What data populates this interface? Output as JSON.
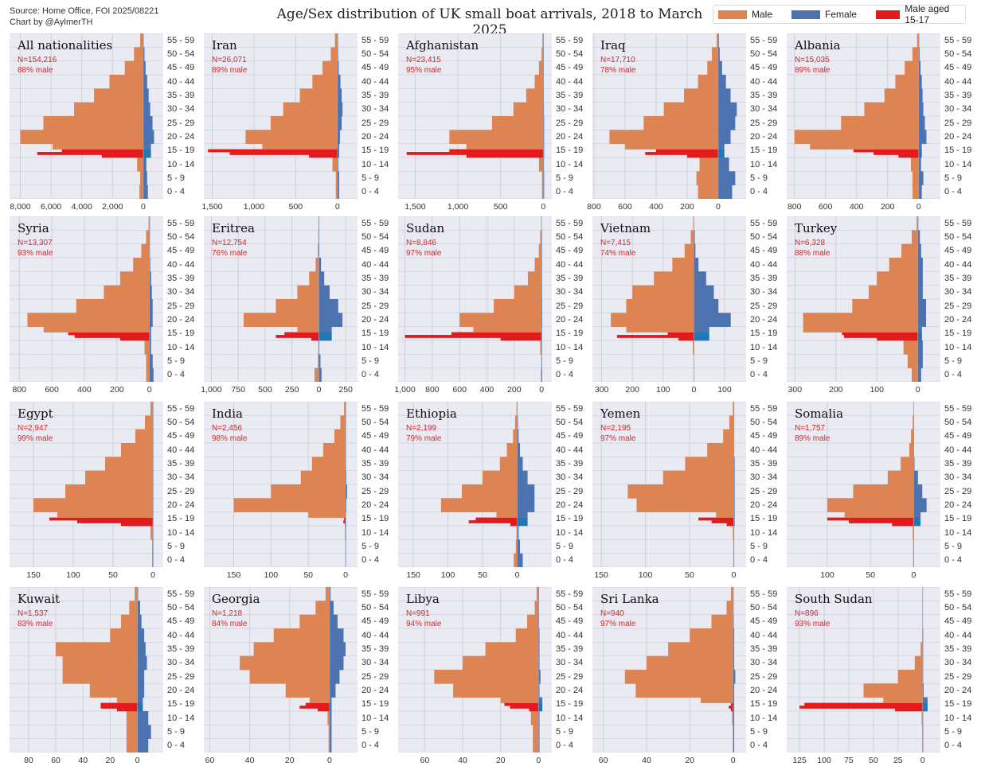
{
  "header": {
    "source_line": "Source: Home Office, FOI 2025/08221",
    "credit_line": "Chart by @AylmerTH",
    "title": "Age/Sex distribution of UK small boat arrivals, 2018 to March 2025"
  },
  "legend": [
    {
      "label": "Male",
      "color": "#dd8452"
    },
    {
      "label": "Female",
      "color": "#4c72b0"
    },
    {
      "label": "Male aged 15-17",
      "color": "#e31a1c"
    }
  ],
  "colors": {
    "male": "#dd8452",
    "female": "#4c72b0",
    "female_15_17": "#1f78b4",
    "male_15_17": "#e31a1c",
    "panel_bg": "#eaeaf2"
  },
  "chart_data": {
    "type": "bar",
    "orientation": "horizontal population pyramid",
    "grid": true,
    "legend_placement": "top-right",
    "age_groups": [
      "0 - 4",
      "5 - 9",
      "10 - 14",
      "15 - 19",
      "20 - 24",
      "25 - 29",
      "30 - 34",
      "35 - 39",
      "40 - 44",
      "45 - 49",
      "50 - 54",
      "55 - 59"
    ],
    "value_note_units": "arrivals per single year of age",
    "panels": [
      {
        "name": "All nationalities",
        "n": "N=154,216",
        "pct": "88% male",
        "xlim": [
          -8700,
          1300
        ],
        "male_ticks": [
          "8,000",
          "6,000",
          "4,000",
          "2,000",
          "0"
        ],
        "male_tick_values": [
          8000,
          6000,
          4000,
          2000,
          0
        ],
        "female_tick_values": [],
        "male": [
          250,
          200,
          400,
          5900,
          8000,
          6500,
          4500,
          3200,
          2200,
          1200,
          600,
          200
        ],
        "male_15_17": [
          2700,
          6900,
          5300
        ],
        "female": [
          300,
          250,
          200,
          500,
          700,
          600,
          450,
          350,
          250,
          150,
          80,
          30
        ]
      },
      {
        "name": "Iran",
        "n": "N=26,071",
        "pct": "89% male",
        "xlim": [
          -1600,
          240
        ],
        "male_ticks": [
          "1,500",
          "1,000",
          "500",
          "0"
        ],
        "male_tick_values": [
          1500,
          1000,
          500,
          0
        ],
        "female_tick_values": [],
        "male": [
          20,
          20,
          60,
          900,
          1100,
          800,
          650,
          450,
          300,
          180,
          80,
          30
        ],
        "male_15_17": [
          340,
          1290,
          1550
        ],
        "female": [
          20,
          20,
          10,
          20,
          30,
          50,
          60,
          50,
          35,
          15,
          8,
          3
        ]
      },
      {
        "name": "Afghanistan",
        "n": "N=23,415",
        "pct": "95% male",
        "xlim": [
          -1700,
          100
        ],
        "male_ticks": [
          "1,500",
          "1,000",
          "500",
          "0"
        ],
        "male_tick_values": [
          1500,
          1000,
          500,
          0
        ],
        "female_tick_values": [],
        "male": [
          15,
          15,
          50,
          900,
          1100,
          600,
          350,
          200,
          100,
          50,
          20,
          10
        ],
        "male_15_17": [
          900,
          1600,
          1100
        ],
        "female": [
          10,
          10,
          8,
          10,
          10,
          10,
          8,
          6,
          4,
          3,
          2,
          1
        ]
      },
      {
        "name": "Iraq",
        "n": "N=17,710",
        "pct": "78% male",
        "xlim": [
          -810,
          180
        ],
        "male_ticks": [
          "800",
          "600",
          "400",
          "200",
          "0"
        ],
        "male_tick_values": [
          800,
          600,
          400,
          200,
          0
        ],
        "female_tick_values": [],
        "male": [
          130,
          140,
          120,
          600,
          700,
          480,
          350,
          220,
          130,
          70,
          40,
          10
        ],
        "male_15_17": [
          200,
          470,
          400
        ],
        "female": [
          90,
          110,
          70,
          40,
          80,
          110,
          120,
          80,
          50,
          25,
          10,
          5
        ]
      },
      {
        "name": "Albania",
        "n": "N=15,035",
        "pct": "89% male",
        "xlim": [
          -850,
          140
        ],
        "male_ticks": [
          "800",
          "600",
          "400",
          "200",
          "0"
        ],
        "male_tick_values": [
          800,
          600,
          400,
          200,
          0
        ],
        "female_tick_values": [],
        "male": [
          40,
          40,
          50,
          700,
          800,
          500,
          350,
          220,
          150,
          90,
          40,
          10
        ],
        "male_15_17": [
          130,
          290,
          420
        ],
        "female": [
          20,
          30,
          15,
          20,
          50,
          40,
          30,
          25,
          20,
          12,
          6,
          2
        ]
      },
      {
        "name": "Syria",
        "n": "N=13,307",
        "pct": "93% male",
        "xlim": [
          -860,
          85
        ],
        "male_ticks": [
          "800",
          "600",
          "400",
          "200",
          "0"
        ],
        "male_tick_values": [
          800,
          600,
          400,
          200,
          0
        ],
        "female_tick_values": [],
        "male": [
          20,
          20,
          30,
          650,
          750,
          450,
          280,
          180,
          100,
          50,
          20,
          5
        ],
        "male_15_17": [
          180,
          460,
          500
        ],
        "female": [
          25,
          20,
          10,
          10,
          20,
          20,
          15,
          10,
          5,
          3,
          2,
          1
        ]
      },
      {
        "name": "Eritrea",
        "n": "N=12,754",
        "pct": "76% male",
        "xlim": [
          -1070,
          360
        ],
        "male_ticks": [
          "1,000",
          "750",
          "500",
          "250",
          "0"
        ],
        "male_tick_values": [
          1000,
          750,
          500,
          250,
          0
        ],
        "female_ticks": [
          "250"
        ],
        "female_tick_values": [
          250
        ],
        "male": [
          40,
          10,
          5,
          200,
          700,
          400,
          200,
          90,
          30,
          10,
          5,
          2
        ],
        "male_15_17": [
          70,
          400,
          320
        ],
        "female": [
          25,
          15,
          5,
          120,
          220,
          180,
          100,
          50,
          20,
          5,
          3,
          1
        ]
      },
      {
        "name": "Sudan",
        "n": "N=8,846",
        "pct": "97% male",
        "xlim": [
          -1050,
          75
        ],
        "male_ticks": [
          "1,000",
          "800",
          "600",
          "400",
          "200",
          "0"
        ],
        "male_tick_values": [
          1000,
          800,
          600,
          400,
          200,
          0
        ],
        "female_tick_values": [],
        "male": [
          5,
          3,
          10,
          500,
          600,
          350,
          200,
          100,
          50,
          20,
          10,
          3
        ],
        "male_15_17": [
          300,
          1000,
          660
        ],
        "female": [
          5,
          3,
          2,
          4,
          5,
          5,
          4,
          3,
          2,
          1,
          1,
          0
        ]
      },
      {
        "name": "Vietnam",
        "n": "N=7,415",
        "pct": "74% male",
        "xlim": [
          -330,
          170
        ],
        "male_ticks": [
          "300",
          "200",
          "100",
          "0"
        ],
        "male_tick_values": [
          300,
          200,
          100,
          0
        ],
        "female_ticks": [
          "100"
        ],
        "female_tick_values": [
          100
        ],
        "male": [
          0,
          0,
          3,
          220,
          270,
          220,
          200,
          130,
          70,
          30,
          10,
          2
        ],
        "male_15_17": [
          50,
          250,
          85
        ],
        "female": [
          0,
          0,
          1,
          50,
          120,
          80,
          65,
          40,
          15,
          5,
          3,
          0
        ]
      },
      {
        "name": "Turkey",
        "n": "N=6,328",
        "pct": "88% male",
        "xlim": [
          -320,
          55
        ],
        "male_ticks": [
          "300",
          "200",
          "100",
          "0"
        ],
        "male_tick_values": [
          300,
          200,
          100,
          0
        ],
        "female_tick_values": [],
        "male": [
          15,
          25,
          35,
          280,
          280,
          160,
          120,
          100,
          70,
          40,
          15,
          3
        ],
        "male_15_17": [
          100,
          180,
          185
        ],
        "female": [
          8,
          12,
          12,
          10,
          20,
          20,
          12,
          12,
          12,
          8,
          5,
          1
        ]
      },
      {
        "name": "Egypt",
        "n": "N=2,947",
        "pct": "99% male",
        "xlim": [
          -180,
          13
        ],
        "male_ticks": [
          "150",
          "100",
          "50",
          "0"
        ],
        "male_tick_values": [
          150,
          100,
          50,
          0
        ],
        "female_tick_values": [],
        "male": [
          1,
          1,
          3,
          120,
          150,
          110,
          85,
          60,
          40,
          22,
          10,
          3
        ],
        "male_15_17": [
          40,
          95,
          130
        ],
        "female": [
          0.5,
          0.5,
          0.5,
          0.5,
          0.5,
          0.5,
          0.5,
          0.5,
          0.5,
          0.5,
          0.3,
          0.2
        ]
      },
      {
        "name": "India",
        "n": "N=2,456",
        "pct": "98% male",
        "xlim": [
          -190,
          16
        ],
        "male_ticks": [
          "150",
          "100",
          "50",
          "0"
        ],
        "male_tick_values": [
          150,
          100,
          50,
          0
        ],
        "female_tick_values": [],
        "male": [
          0,
          0,
          1,
          50,
          150,
          100,
          60,
          45,
          30,
          15,
          7,
          2
        ],
        "male_15_17": [
          1,
          3,
          2
        ],
        "female": [
          0.5,
          0.5,
          0.5,
          0.5,
          1,
          2,
          1,
          0.5,
          0.5,
          0.5,
          0.3,
          0.2
        ]
      },
      {
        "name": "Ethiopia",
        "n": "N=2,199",
        "pct": "79% male",
        "xlim": [
          -172,
          50
        ],
        "male_ticks": [
          "150",
          "100",
          "50",
          "0"
        ],
        "male_tick_values": [
          150,
          100,
          50,
          0
        ],
        "female_tick_values": [],
        "male": [
          5,
          2,
          1,
          30,
          110,
          80,
          50,
          25,
          15,
          6,
          3,
          1
        ],
        "male_15_17": [
          10,
          70,
          60
        ],
        "female": [
          8,
          4,
          2,
          15,
          25,
          25,
          15,
          8,
          4,
          2,
          1,
          0
        ]
      },
      {
        "name": "Yemen",
        "n": "N=2,195",
        "pct": "97% male",
        "xlim": [
          -160,
          14
        ],
        "male_ticks": [
          "150",
          "100",
          "50",
          "0"
        ],
        "male_tick_values": [
          150,
          100,
          50,
          0
        ],
        "female_tick_values": [],
        "male": [
          0.5,
          0.5,
          1,
          20,
          110,
          120,
          80,
          55,
          30,
          12,
          5,
          1
        ],
        "male_15_17": [
          8,
          25,
          40
        ],
        "female": [
          0.5,
          0.5,
          0.5,
          1,
          1,
          1,
          1,
          1,
          0.5,
          0.5,
          0.3,
          0.2
        ]
      },
      {
        "name": "Somalia",
        "n": "N=1,757",
        "pct": "89% male",
        "xlim": [
          -147,
          31
        ],
        "male_ticks": [
          "100",
          "50",
          "0"
        ],
        "male_tick_values": [
          100,
          50,
          0
        ],
        "female_tick_values": [],
        "male": [
          0.5,
          0.5,
          1,
          80,
          100,
          70,
          30,
          15,
          5,
          3,
          1,
          0
        ],
        "male_15_17": [
          25,
          75,
          100
        ],
        "female": [
          0.5,
          0.5,
          0.5,
          8,
          15,
          10,
          5,
          1,
          0.5,
          0.5,
          0.3,
          0
        ]
      },
      {
        "name": "Kuwait",
        "n": "N=1,537",
        "pct": "83% male",
        "xlim": [
          -94,
          19
        ],
        "male_ticks": [
          "80",
          "60",
          "40",
          "20",
          "0"
        ],
        "male_tick_values": [
          80,
          60,
          40,
          20,
          0
        ],
        "female_tick_values": [],
        "male": [
          8,
          8,
          8,
          15,
          35,
          55,
          55,
          60,
          20,
          12,
          6,
          2
        ],
        "male_15_17": [
          15,
          27,
          27
        ],
        "female": [
          8,
          10,
          8,
          4,
          5,
          5,
          7,
          6,
          5,
          3,
          2,
          0.5
        ]
      },
      {
        "name": "Georgia",
        "n": "N=1,218",
        "pct": "84% male",
        "xlim": [
          -63,
          14
        ],
        "male_ticks": [
          "60",
          "40",
          "20",
          "0"
        ],
        "male_tick_values": [
          60,
          40,
          20,
          0
        ],
        "female_tick_values": [],
        "male": [
          0.5,
          0.5,
          1,
          10,
          22,
          40,
          45,
          38,
          28,
          15,
          7,
          2
        ],
        "male_15_17": [
          6,
          15,
          12
        ],
        "female": [
          1,
          1,
          1,
          1,
          3,
          5,
          7,
          8,
          7,
          4,
          2,
          0.5
        ]
      },
      {
        "name": "Libya",
        "n": "N=991",
        "pct": "94% male",
        "xlim": [
          -74,
          7
        ],
        "male_ticks": [
          "60",
          "40",
          "20",
          "0"
        ],
        "male_tick_values": [
          60,
          40,
          20,
          0
        ],
        "female_tick_values": [],
        "male": [
          3,
          3,
          4,
          20,
          45,
          55,
          40,
          28,
          12,
          6,
          2,
          1
        ],
        "male_15_17": [
          5,
          15,
          18
        ],
        "female": [
          0.5,
          0.5,
          0.5,
          2,
          0.5,
          1,
          0.5,
          0.5,
          0.5,
          0.3,
          0.2,
          0.1
        ]
      },
      {
        "name": "Sri Lanka",
        "n": "N=940",
        "pct": "97% male",
        "xlim": [
          -65,
          6
        ],
        "male_ticks": [
          "60",
          "40",
          "20",
          "0"
        ],
        "male_tick_values": [
          60,
          40,
          20,
          0
        ],
        "female_tick_values": [],
        "male": [
          0,
          0,
          0.5,
          15,
          45,
          50,
          40,
          30,
          20,
          10,
          3,
          1
        ],
        "male_15_17": [
          1,
          2,
          1
        ],
        "female": [
          0.5,
          0.5,
          0.5,
          0.5,
          0.5,
          1,
          0.5,
          0.5,
          0.5,
          0.3,
          0.2,
          0.1
        ]
      },
      {
        "name": "South Sudan",
        "n": "N=896",
        "pct": "93% male",
        "xlim": [
          -138,
          18
        ],
        "male_ticks": [
          "125",
          "100",
          "75",
          "50",
          "25",
          "0"
        ],
        "male_tick_values": [
          125,
          100,
          75,
          50,
          25,
          0
        ],
        "female_tick_values": [],
        "male": [
          0.5,
          0.5,
          1,
          40,
          60,
          25,
          8,
          2,
          0.5,
          0,
          0,
          0
        ],
        "male_15_17": [
          28,
          125,
          120
        ],
        "female": [
          0.5,
          0.5,
          0.5,
          5,
          1,
          0.5,
          0.5,
          0.3,
          0.2,
          0,
          0,
          0
        ]
      }
    ]
  }
}
